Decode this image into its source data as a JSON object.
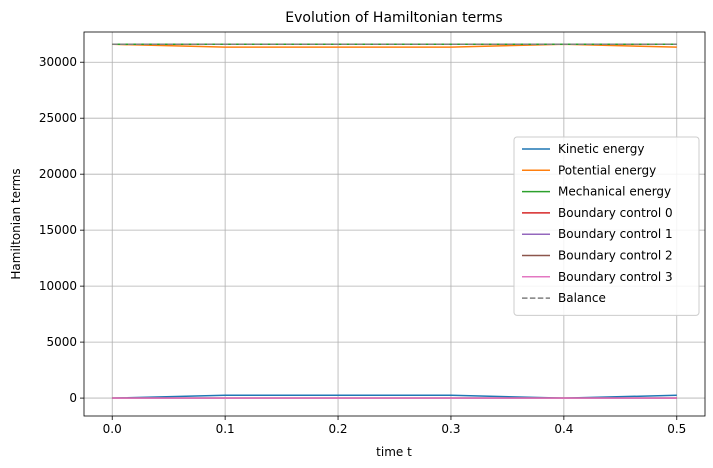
{
  "chart_data": {
    "type": "line",
    "title": "Evolution of Hamiltonian terms",
    "xlabel": "time t",
    "ylabel": "Hamiltonian terms",
    "xlim": [
      -0.025,
      0.525
    ],
    "ylim": [
      -1600,
      32700
    ],
    "xticks": [
      0.0,
      0.1,
      0.2,
      0.3,
      0.4,
      0.5
    ],
    "xtick_labels": [
      "0.0",
      "0.1",
      "0.2",
      "0.3",
      "0.4",
      "0.5"
    ],
    "yticks": [
      0,
      5000,
      10000,
      15000,
      20000,
      25000,
      30000
    ],
    "ytick_labels": [
      "0",
      "5000",
      "10000",
      "15000",
      "20000",
      "25000",
      "30000"
    ],
    "grid": true,
    "legend_position": "center-right",
    "x": [
      0.0,
      0.1,
      0.2,
      0.3,
      0.4,
      0.5
    ],
    "series": [
      {
        "name": "Kinetic energy",
        "color": "#1f77b4",
        "style": "solid",
        "values": [
          0,
          250,
          250,
          250,
          0,
          250
        ]
      },
      {
        "name": "Potential energy",
        "color": "#ff7f0e",
        "style": "solid",
        "values": [
          31600,
          31350,
          31350,
          31350,
          31600,
          31350
        ]
      },
      {
        "name": "Mechanical energy",
        "color": "#2ca02c",
        "style": "solid",
        "values": [
          31600,
          31600,
          31600,
          31600,
          31600,
          31600
        ]
      },
      {
        "name": "Boundary control 0",
        "color": "#d62728",
        "style": "solid",
        "values": [
          0,
          0,
          0,
          0,
          0,
          0
        ]
      },
      {
        "name": "Boundary control 1",
        "color": "#9467bd",
        "style": "solid",
        "values": [
          0,
          0,
          0,
          0,
          0,
          0
        ]
      },
      {
        "name": "Boundary control 2",
        "color": "#8c564b",
        "style": "solid",
        "values": [
          0,
          0,
          0,
          0,
          0,
          0
        ]
      },
      {
        "name": "Boundary control 3",
        "color": "#e377c2",
        "style": "solid",
        "values": [
          0,
          0,
          0,
          0,
          0,
          0
        ]
      },
      {
        "name": "Balance",
        "color": "#7f7f7f",
        "style": "dashed",
        "values": [
          31600,
          31600,
          31600,
          31600,
          31600,
          31600
        ]
      }
    ]
  }
}
